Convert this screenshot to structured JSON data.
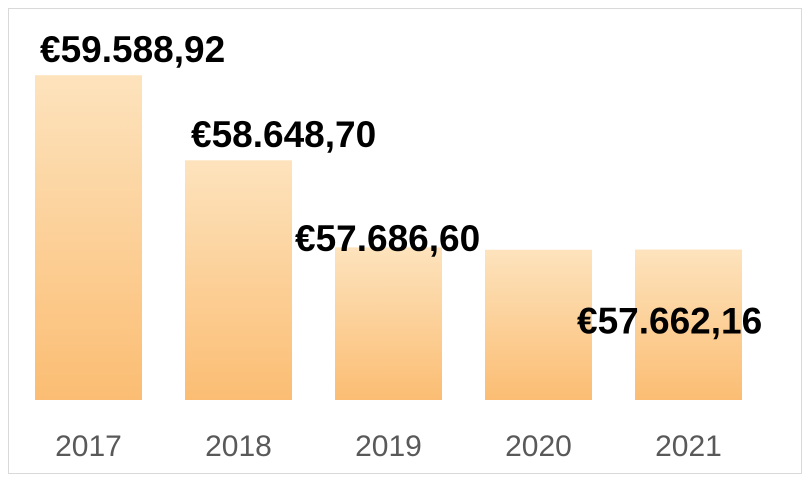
{
  "chart_data": {
    "type": "bar",
    "categories": [
      "2017",
      "2018",
      "2019",
      "2020",
      "2021"
    ],
    "values": [
      59588.92,
      58648.7,
      57686.6,
      57660,
      57662.16
    ],
    "value_labels": [
      "€59.588,92",
      "€58.648,70",
      "€57.686,60",
      null,
      "€57.662,16"
    ],
    "color": "#fbbd73",
    "ylim": [
      56000,
      60000
    ]
  }
}
